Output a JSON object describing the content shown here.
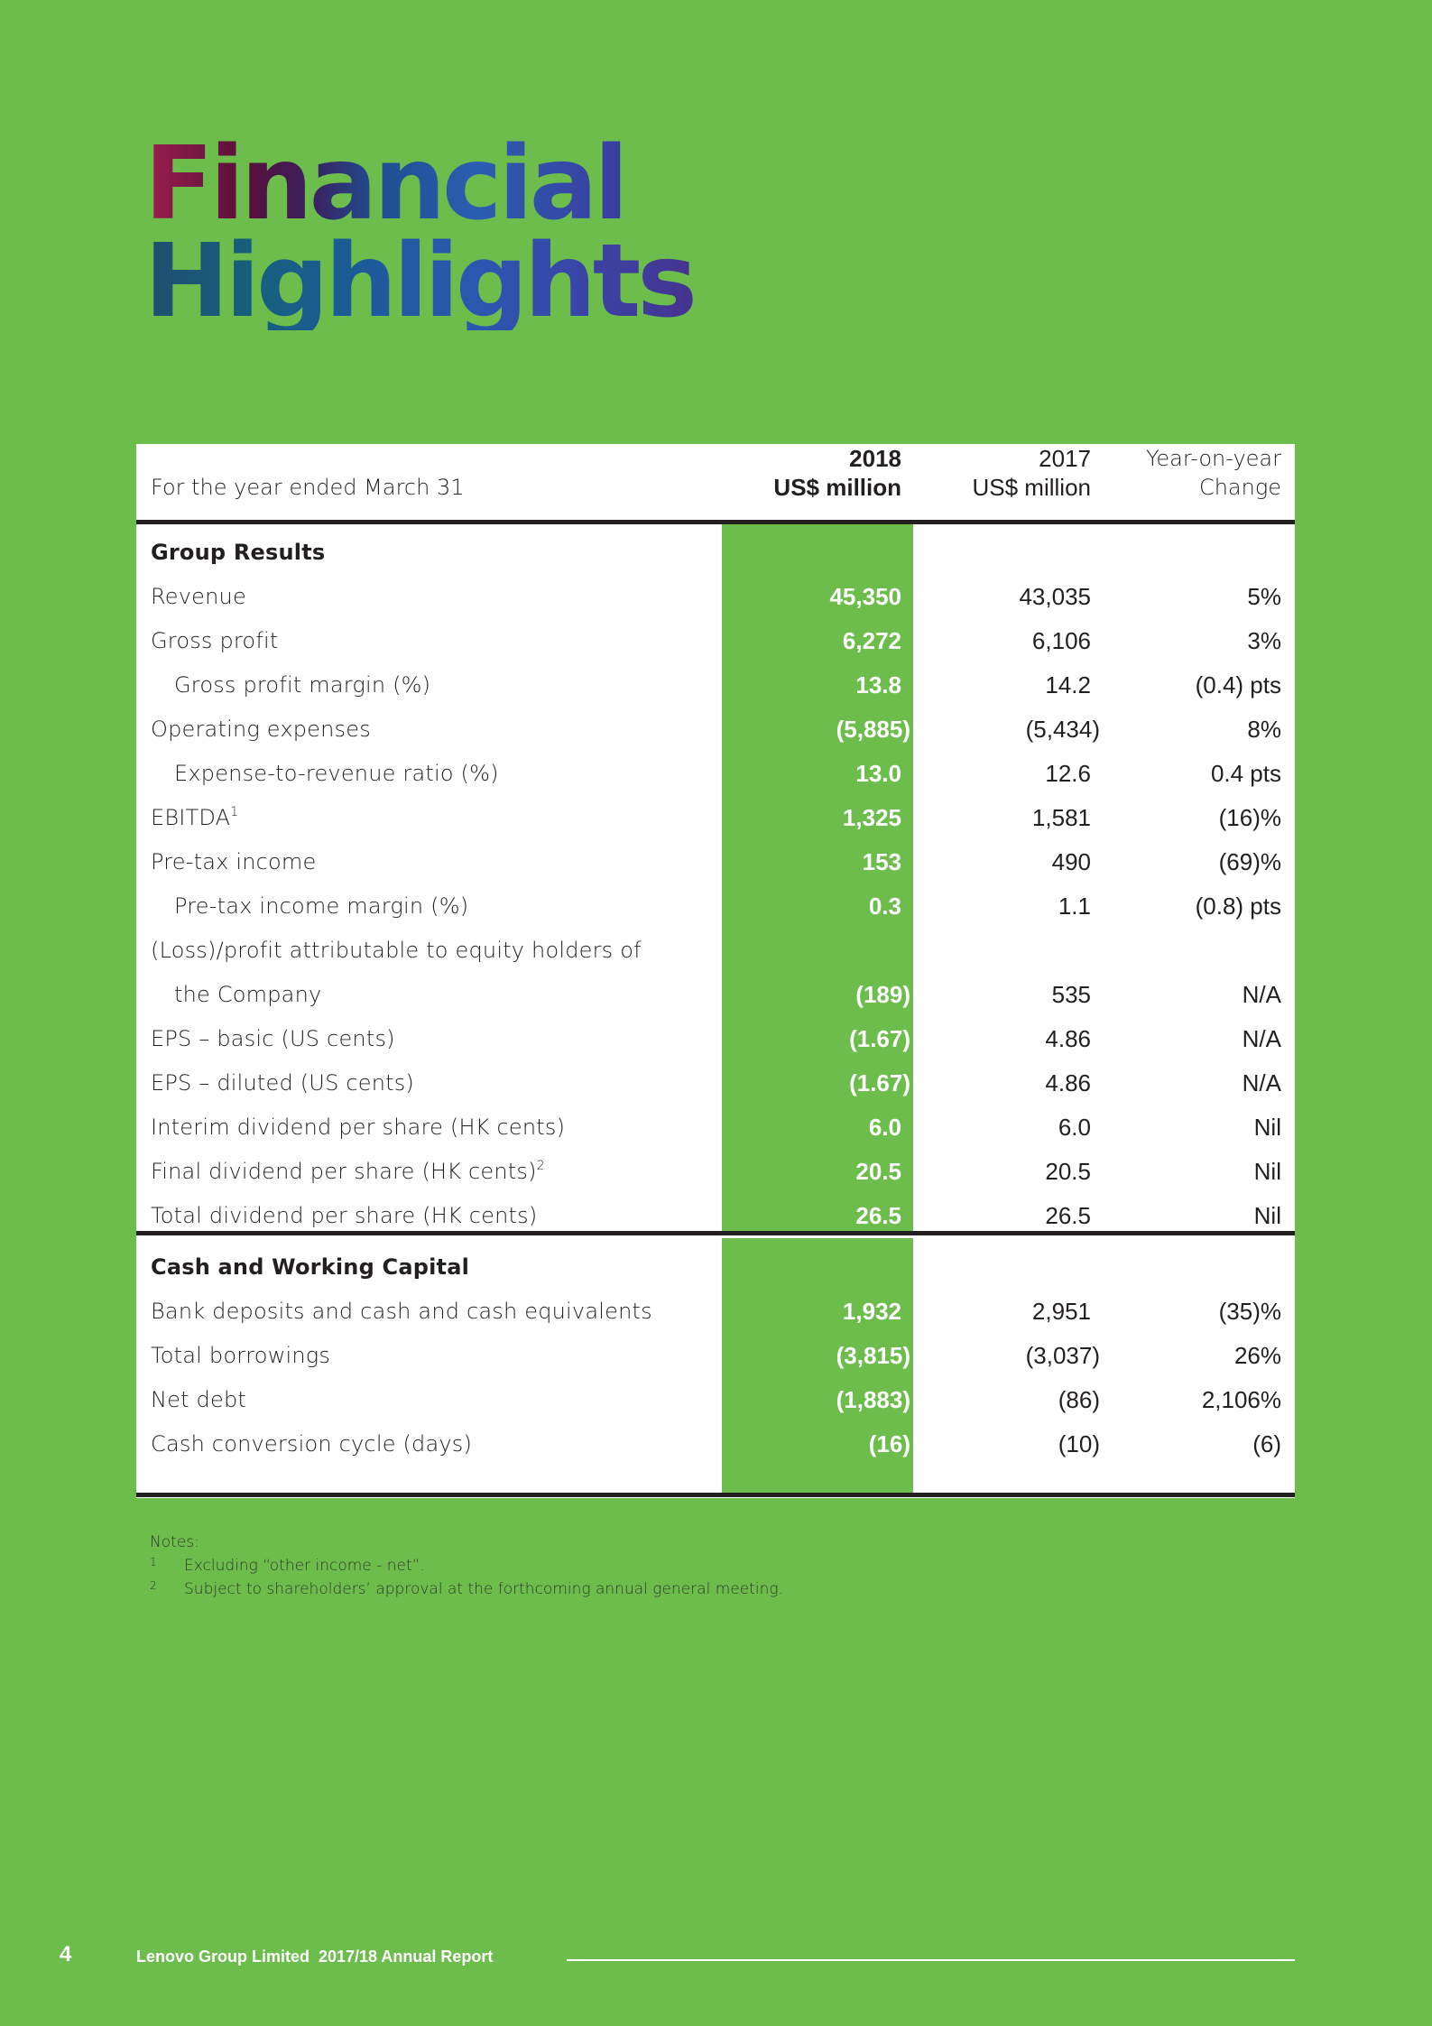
{
  "title": {
    "line1": "Financial",
    "line2": "Highlights"
  },
  "table": {
    "header": {
      "label": "For the year ended March 31",
      "col_2018": {
        "line1": "2018",
        "line2": "US$ million"
      },
      "col_2017": {
        "line1": "2017",
        "line2": "US$ million"
      },
      "col_change": {
        "line1": "Year-on-year",
        "line2": "Change"
      }
    },
    "sections": [
      {
        "title": "Group Results",
        "rows": [
          {
            "label": "Revenue",
            "v2018": "45,350",
            "v2017": "43,035",
            "change": "5%"
          },
          {
            "label": "Gross profit",
            "v2018": "6,272",
            "v2017": "6,106",
            "change": "3%"
          },
          {
            "label": "Gross profit margin (%)",
            "indent": true,
            "v2018": "13.8",
            "v2017": "14.2",
            "change": "(0.4) pts"
          },
          {
            "label": "Operating expenses",
            "v2018": "(5,885)",
            "v2017": "(5,434)",
            "change": "8%"
          },
          {
            "label": "Expense-to-revenue ratio (%)",
            "indent": true,
            "v2018": "13.0",
            "v2017": "12.6",
            "change": "0.4 pts"
          },
          {
            "label": "EBITDA",
            "sup": "1",
            "v2018": "1,325",
            "v2017": "1,581",
            "change": "(16)%"
          },
          {
            "label": "Pre-tax income",
            "v2018": "153",
            "v2017": "490",
            "change": "(69)%"
          },
          {
            "label": "Pre-tax income margin (%)",
            "indent": true,
            "v2018": "0.3",
            "v2017": "1.1",
            "change": "(0.8) pts"
          },
          {
            "label": "(Loss)/profit attributable to equity holders of",
            "label2": "the Company",
            "v2018": "(189)",
            "v2017": "535",
            "change": "N/A"
          },
          {
            "label": "EPS – basic (US cents)",
            "v2018": "(1.67)",
            "v2017": "4.86",
            "change": "N/A"
          },
          {
            "label": "EPS – diluted (US cents)",
            "v2018": "(1.67)",
            "v2017": "4.86",
            "change": "N/A"
          },
          {
            "label": "Interim dividend per share (HK cents)",
            "v2018": "6.0",
            "v2017": "6.0",
            "change": "Nil"
          },
          {
            "label": "Final dividend per share (HK cents)",
            "sup": "2",
            "v2018": "20.5",
            "v2017": "20.5",
            "change": "Nil"
          },
          {
            "label": "Total dividend per share (HK cents)",
            "v2018": "26.5",
            "v2017": "26.5",
            "change": "Nil"
          }
        ]
      },
      {
        "title": "Cash and Working Capital",
        "rows": [
          {
            "label": "Bank deposits and cash and cash equivalents",
            "v2018": "1,932",
            "v2017": "2,951",
            "change": "(35)%"
          },
          {
            "label": "Total borrowings",
            "v2018": "(3,815)",
            "v2017": "(3,037)",
            "change": "26%"
          },
          {
            "label": "Net debt",
            "v2018": "(1,883)",
            "v2017": "(86)",
            "change": "2,106%"
          },
          {
            "label": "Cash conversion cycle (days)",
            "v2018": "(16)",
            "v2017": "(10)",
            "change": "(6)"
          }
        ]
      }
    ]
  },
  "notes": {
    "heading": "Notes:",
    "items": [
      {
        "num": "1",
        "text": "Excluding “other income - net”."
      },
      {
        "num": "2",
        "text": "Subject to shareholders’ approval at the forthcoming annual general meeting."
      }
    ]
  },
  "footer": {
    "page_number": "4",
    "text": "Lenovo Group Limited  2017/18 Annual Report"
  },
  "colors": {
    "background": "#6dbd4d",
    "panel": "#ffffff",
    "rule": "#231f20",
    "highlight_text": "#ffffff"
  }
}
